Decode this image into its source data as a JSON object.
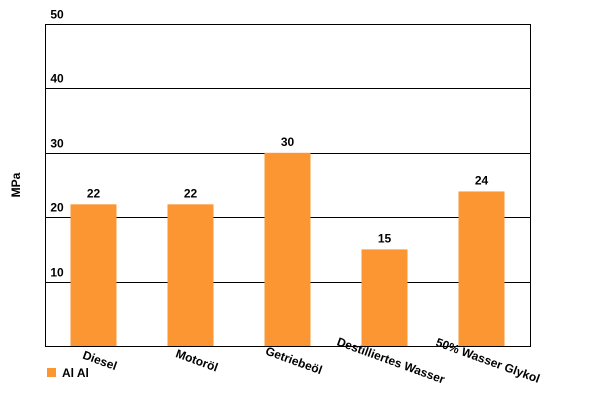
{
  "chart_data": {
    "type": "bar",
    "categories": [
      "Diesel",
      "Motoröl",
      "Getriebeöl",
      "Destilliertes Wasser",
      "50% Wasser Glykol"
    ],
    "series": [
      {
        "name": "Al Al",
        "values": [
          22,
          22,
          30,
          15,
          24
        ],
        "color": "#fb9633"
      }
    ],
    "ylabel": "MPa",
    "xlabel": "",
    "ylim": [
      0,
      50
    ],
    "yticks": [
      10,
      20,
      30,
      40,
      50
    ],
    "grid": true,
    "legend": "bottom-left",
    "data_labels": true
  }
}
